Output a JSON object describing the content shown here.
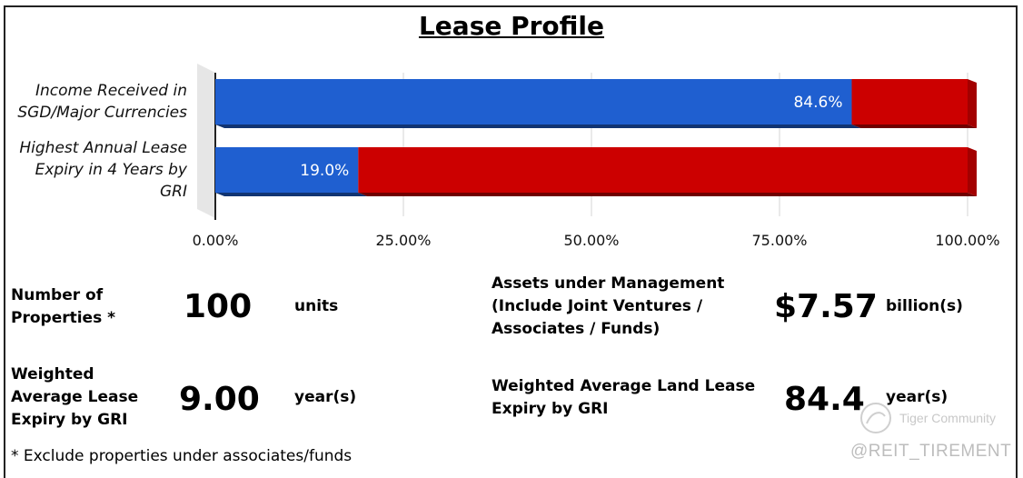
{
  "chart_data": {
    "type": "bar",
    "orientation": "horizontal",
    "stacked": true,
    "title": "Lease Profile",
    "categories": [
      [
        "Income Received in",
        "SGD/Major Currencies"
      ],
      [
        "Highest Annual Lease",
        "Expiry in 4 Years by",
        "GRI"
      ]
    ],
    "series": [
      {
        "values": [
          84.6,
          19.0
        ],
        "color": "#1f5fd0"
      },
      {
        "values": [
          15.4,
          81.0
        ],
        "color": "#cc0000"
      }
    ],
    "data_labels": [
      "84.6%",
      "19.0%"
    ],
    "xlim": [
      0,
      100
    ],
    "xticks": [
      0,
      25,
      50,
      75,
      100
    ],
    "xtick_labels": [
      "0.00%",
      "25.00%",
      "50.00%",
      "75.00%",
      "100.00%"
    ],
    "grid": true
  },
  "stats": {
    "properties": {
      "label": [
        "Number of",
        "Properties *"
      ],
      "value": "100",
      "unit": "units"
    },
    "aum": {
      "label": [
        "Assets under Management",
        "(Include Joint Ventures /",
        "Associates / Funds)"
      ],
      "value": "$7.57",
      "unit": "billion(s)"
    },
    "wale": {
      "label": [
        "Weighted",
        "Average Lease",
        "Expiry by GRI"
      ],
      "value": "9.00",
      "unit": "year(s)"
    },
    "land_lease": {
      "label": [
        "Weighted Average Land Lease",
        "Expiry by GRI"
      ],
      "value": "84.4",
      "unit": "year(s)"
    }
  },
  "footnote": "* Exclude properties under associates/funds",
  "watermark": {
    "brand": "Tiger Community",
    "handle": "@REIT_TIREMENT"
  }
}
